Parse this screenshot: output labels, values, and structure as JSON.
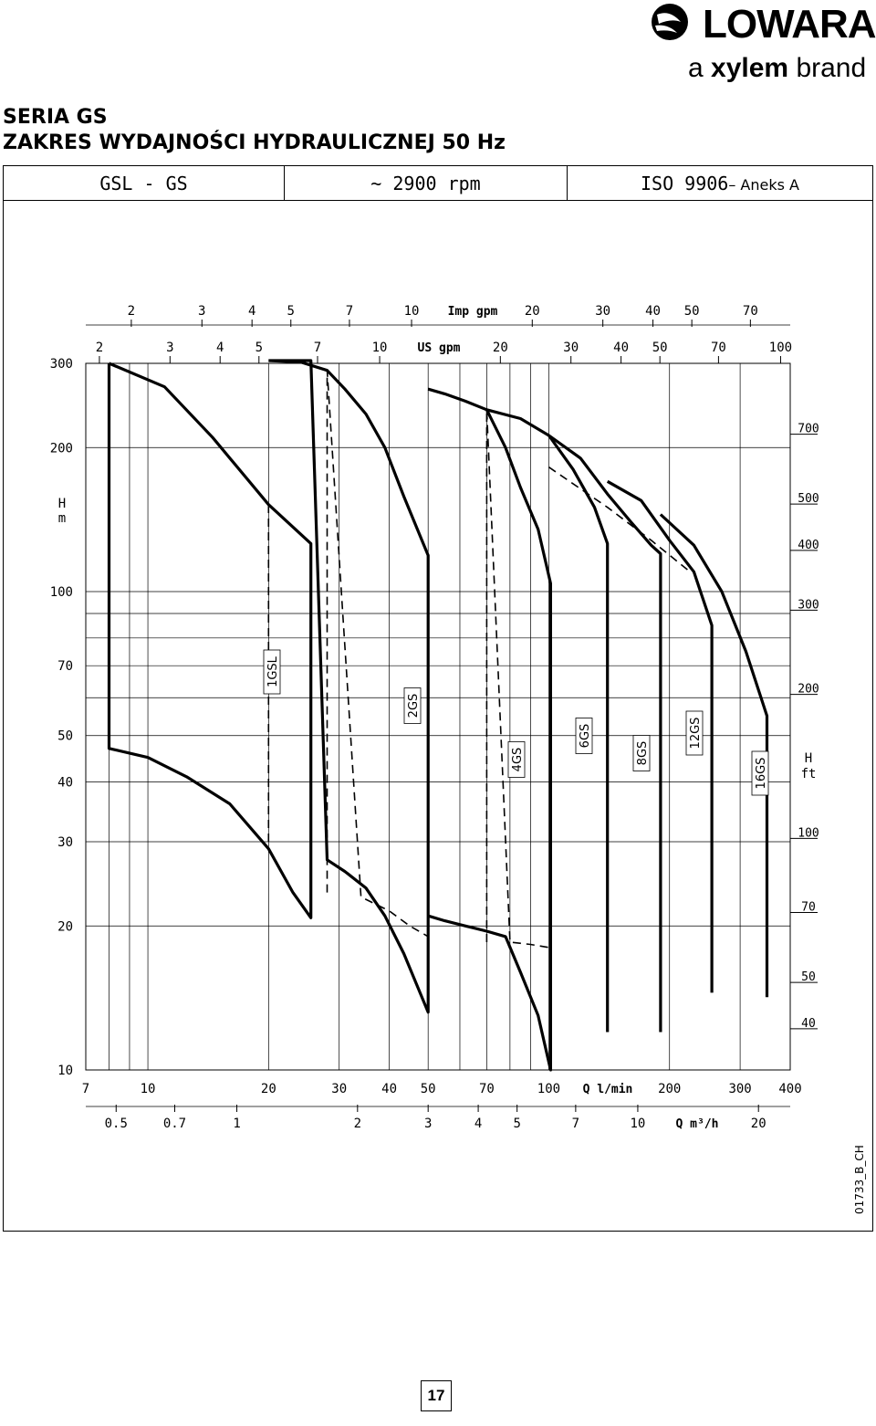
{
  "brand": {
    "name": "LOWARA",
    "tagline_prefix": "a ",
    "tagline_bold": "xylem",
    "tagline_suffix": " brand"
  },
  "title": {
    "line1": "SERIA GS",
    "line2": "ZAKRES WYDAJNOŚCI HYDRAULICZNEJ 50 Hz"
  },
  "header": {
    "model": "GSL - GS",
    "speed": "~ 2900 rpm",
    "standard": "ISO 9906",
    "standard_suffix": "– Aneks A"
  },
  "page_number": "17",
  "chart_data": {
    "type": "line",
    "scale": "log-log",
    "x": {
      "unit": "Q l/min",
      "range": [
        7,
        400
      ],
      "ticks": [
        7,
        10,
        20,
        30,
        40,
        50,
        70,
        100,
        200,
        300,
        400
      ]
    },
    "y": {
      "unit": "H m",
      "range": [
        10,
        300
      ],
      "ticks": [
        10,
        20,
        30,
        40,
        50,
        70,
        100,
        200,
        300
      ]
    },
    "secondary_axes": {
      "q_m3h": {
        "label": "Q m³/h",
        "ticks": [
          0.5,
          0.7,
          1,
          2,
          3,
          4,
          5,
          7,
          10,
          20
        ],
        "tick_labels": [
          "0.5",
          "0.7",
          "1",
          "2",
          "3",
          "4",
          "5",
          "7",
          "10",
          "20"
        ]
      },
      "us_gpm": {
        "label": "US gpm",
        "ticks": [
          2,
          3,
          4,
          5,
          7,
          10,
          20,
          30,
          40,
          50,
          70,
          100
        ]
      },
      "imp_gpm": {
        "label": "Imp gpm",
        "ticks": [
          2,
          3,
          4,
          5,
          7,
          10,
          20,
          30,
          40,
          50,
          70
        ]
      },
      "h_ft": {
        "label_line1": "H",
        "label_line2": "ft",
        "ticks": [
          40,
          50,
          70,
          100,
          200,
          300,
          400,
          500,
          700
        ]
      }
    },
    "y_label_line1": "H",
    "y_label_line2": "m",
    "series": [
      {
        "name": "1GSL",
        "line": "solid",
        "x": [
          8,
          8,
          10,
          12.5,
          16,
          20,
          23,
          25.5,
          25.5,
          20,
          14.5,
          11,
          8
        ],
        "y": [
          300,
          47,
          45,
          41,
          36,
          29,
          23.5,
          20.8,
          126,
          152,
          210,
          268,
          300
        ]
      },
      {
        "name": "1GSL-dashed",
        "line": "dashed",
        "x": [
          20,
          20
        ],
        "y": [
          30,
          152
        ]
      },
      {
        "name": "2GS",
        "line": "solid",
        "x": [
          20,
          22,
          25.5,
          28,
          31,
          35,
          39,
          43.5,
          50,
          50,
          43.5,
          39,
          35,
          31,
          28,
          24,
          20,
          20
        ],
        "y": [
          304,
          304,
          304,
          27.5,
          26,
          24,
          21,
          17.5,
          13.2,
          119,
          158,
          200,
          235,
          265,
          290,
          302,
          304,
          304
        ]
      },
      {
        "name": "2GS-dashed",
        "line": "dashed",
        "x": [
          28,
          28,
          34,
          40,
          45,
          50
        ],
        "y": [
          23.5,
          290,
          23,
          21.5,
          20,
          19
        ]
      },
      {
        "name": "4GS",
        "line": "solid",
        "x": [
          50,
          55,
          62,
          70,
          78,
          85,
          94,
          101,
          101,
          94,
          85,
          78,
          70,
          62,
          55,
          50
        ],
        "y": [
          265,
          259,
          250,
          240,
          200,
          165,
          135,
          104,
          10,
          13,
          16,
          19,
          19.5,
          20,
          20.5,
          21
        ]
      },
      {
        "name": "4GS-dashed",
        "line": "dashed",
        "x": [
          70,
          70,
          80,
          90,
          101
        ],
        "y": [
          18.5,
          240,
          18.5,
          18.3,
          18
        ]
      },
      {
        "name": "6GS",
        "line": "solid",
        "x": [
          70,
          85,
          100,
          115,
          130,
          140,
          140
        ],
        "y": [
          240,
          230,
          212,
          180,
          150,
          126,
          12
        ]
      },
      {
        "name": "8GS",
        "line": "solid",
        "x": [
          100,
          120,
          140,
          160,
          180,
          190,
          190
        ],
        "y": [
          212,
          190,
          160,
          140,
          125,
          120,
          12
        ]
      },
      {
        "name": "12GS",
        "line": "solid",
        "x": [
          140,
          170,
          200,
          230,
          255,
          255
        ],
        "y": [
          170,
          155,
          128,
          110,
          85,
          14.5
        ]
      },
      {
        "name": "16GS",
        "line": "solid",
        "x": [
          190,
          230,
          270,
          310,
          350,
          350
        ],
        "y": [
          145,
          125,
          100,
          75,
          55,
          14.2
        ]
      },
      {
        "name": "6-12GS-dashed",
        "line": "dashed",
        "x": [
          100,
          140,
          180,
          225
        ],
        "y": [
          182,
          150,
          128,
          110
        ]
      }
    ],
    "curve_labels": [
      "1GSL",
      "2GS",
      "4GS",
      "6GS",
      "8GS",
      "12GS",
      "16GS"
    ],
    "annotation": "01733_B_CH"
  }
}
